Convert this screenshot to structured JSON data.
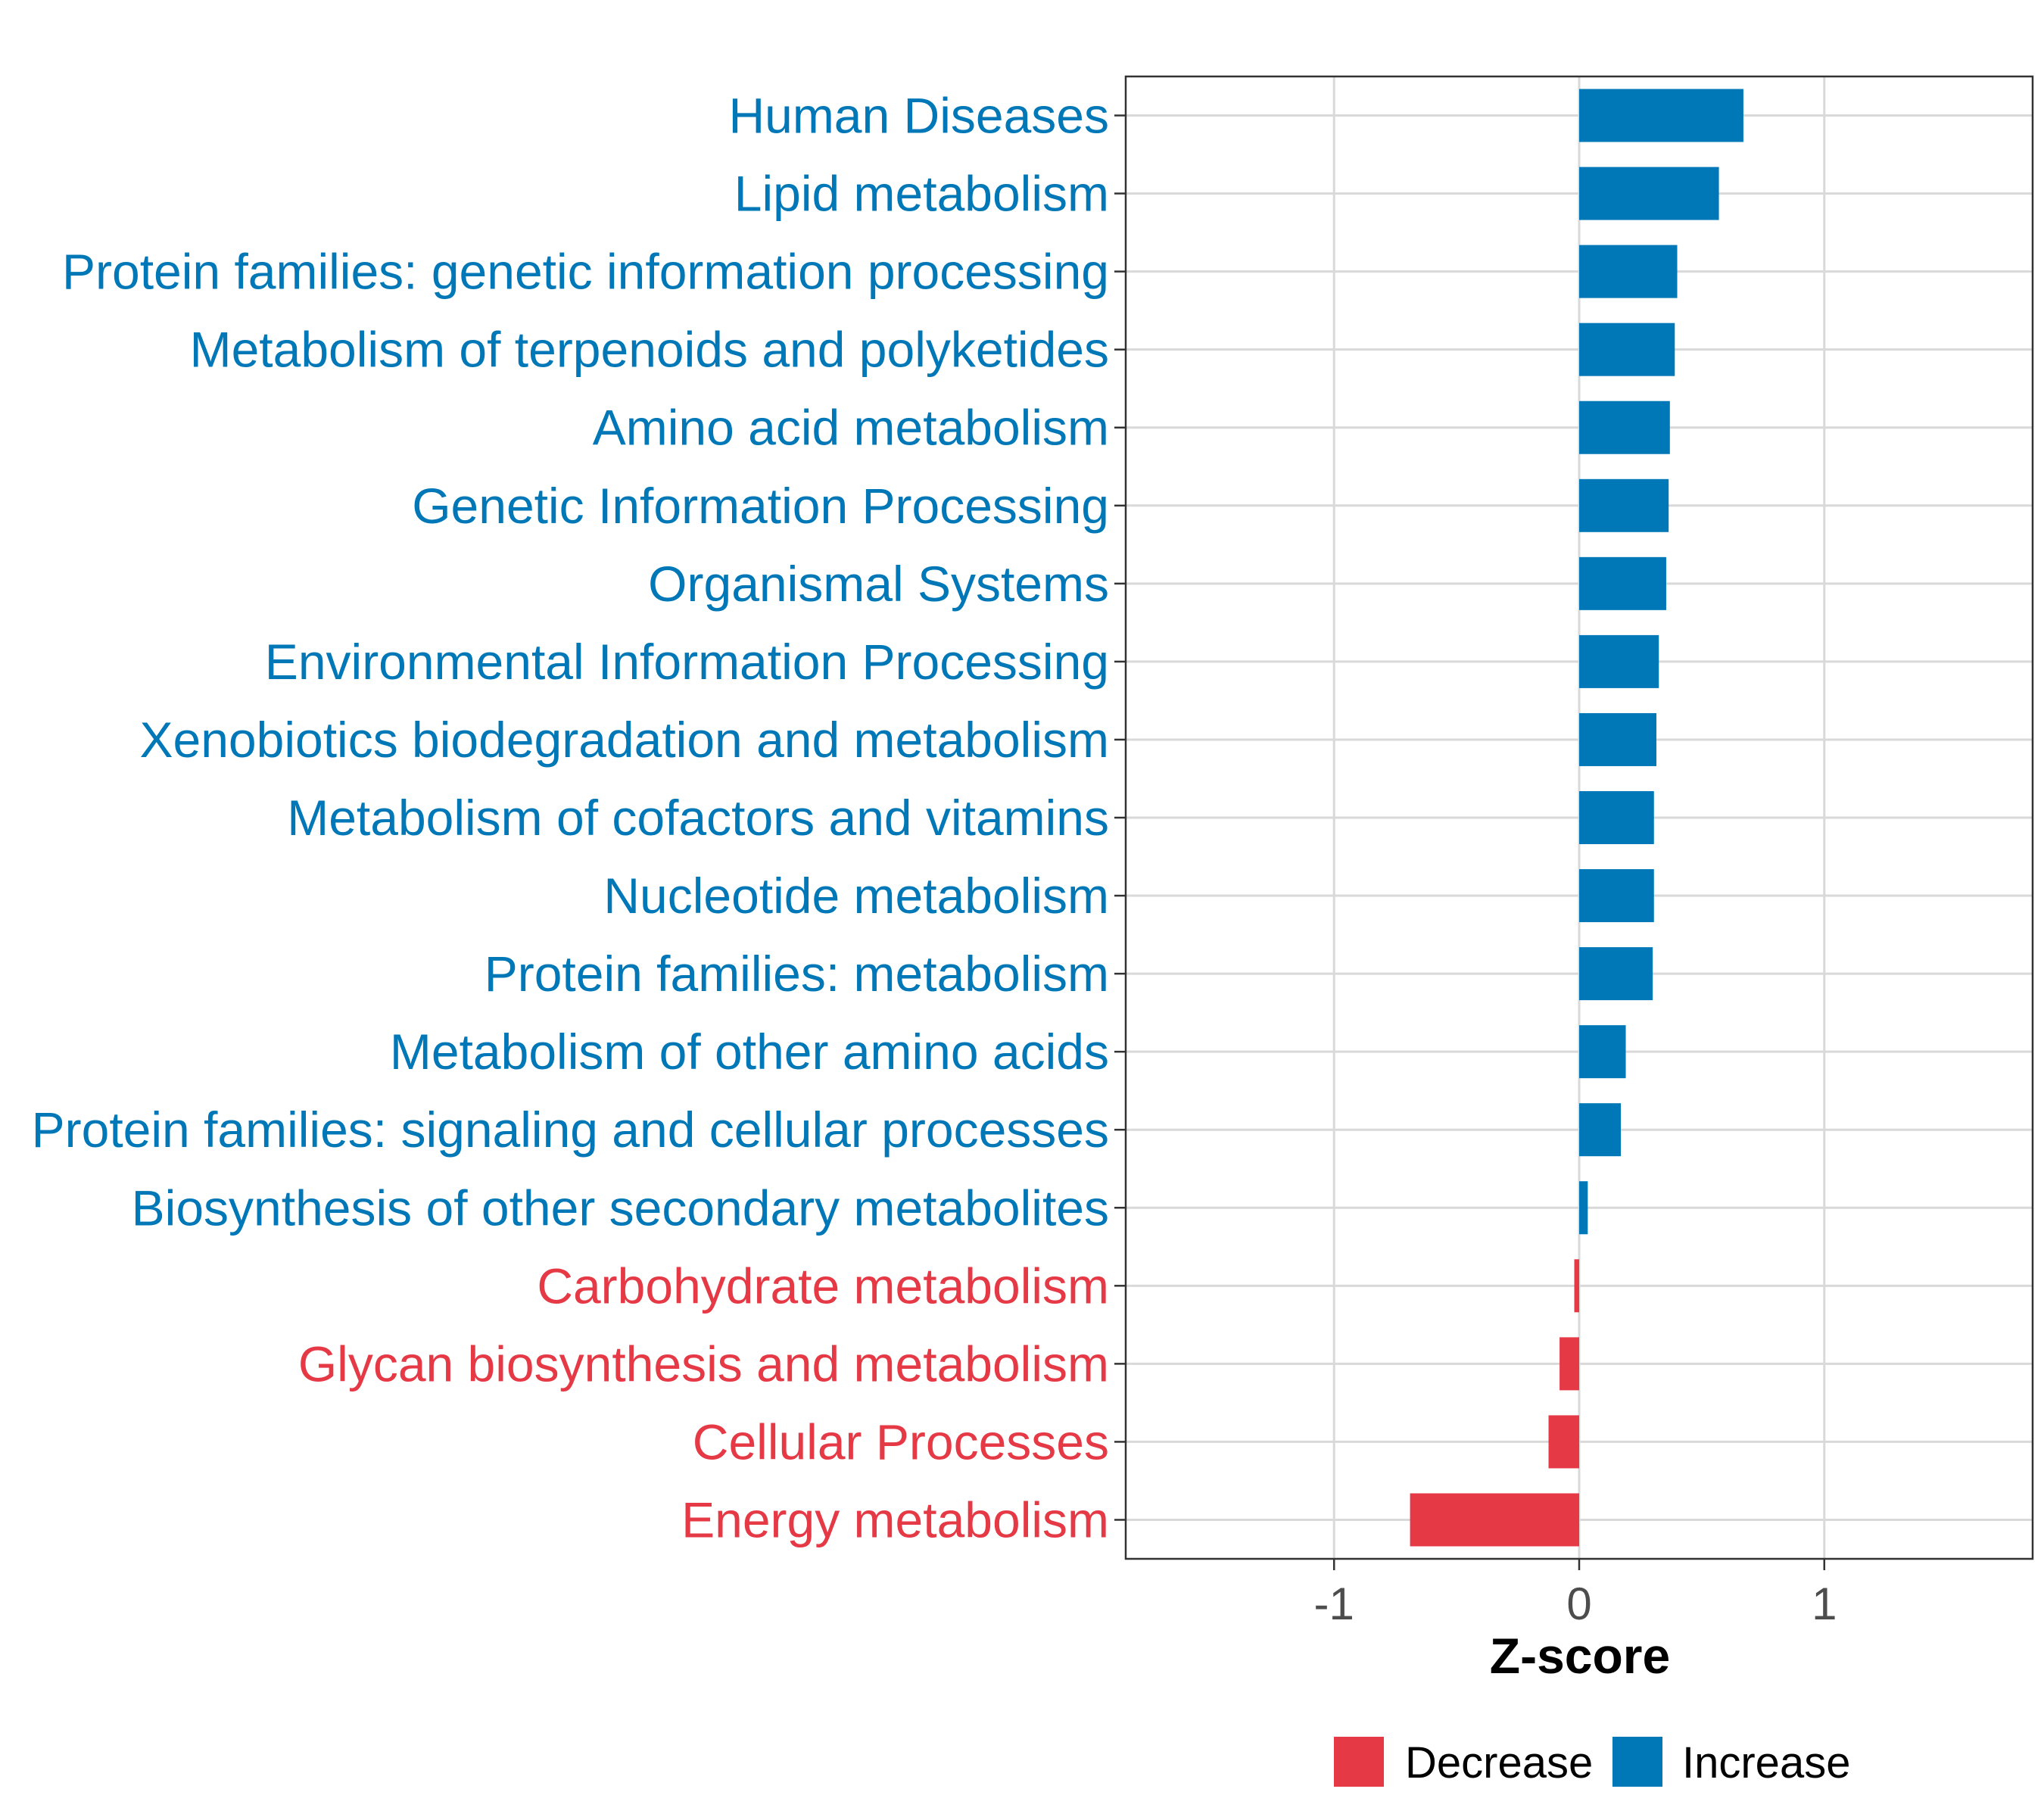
{
  "chart_data": {
    "type": "bar",
    "orientation": "horizontal",
    "xlabel": "Z-score",
    "ylabel": "",
    "xlim": [
      -1.85,
      1.85
    ],
    "xticks": [
      -1,
      0,
      1
    ],
    "xtick_labels": [
      "-1",
      "0",
      "1"
    ],
    "grid": true,
    "categories": [
      "Human Diseases",
      "Lipid metabolism",
      "Protein families: genetic information processing",
      "Metabolism of terpenoids and polyketides",
      "Amino acid metabolism",
      "Genetic Information Processing",
      "Organismal Systems",
      "Environmental Information Processing",
      "Xenobiotics biodegradation and metabolism",
      "Metabolism of cofactors and vitamins",
      "Nucleotide metabolism",
      "Protein families: metabolism",
      "Metabolism of other amino acids",
      "Protein families: signaling and cellular processes",
      "Biosynthesis of other secondary metabolites",
      "Carbohydrate metabolism",
      "Glycan biosynthesis and metabolism",
      "Cellular Processes",
      "Energy metabolism"
    ],
    "values": [
      0.67,
      0.57,
      0.4,
      0.39,
      0.37,
      0.365,
      0.355,
      0.325,
      0.315,
      0.305,
      0.305,
      0.3,
      0.19,
      0.17,
      0.035,
      -0.02,
      -0.08,
      -0.125,
      -0.69
    ],
    "legend": {
      "position": "bottom",
      "entries": [
        {
          "label": "Decrease",
          "color": "#E63946"
        },
        {
          "label": "Increase",
          "color": "#0077B6"
        }
      ]
    }
  },
  "colors": {
    "increase": "#0077B6",
    "decrease": "#E63946",
    "grid": "#d9d9d9",
    "panel_border": "#333333"
  }
}
